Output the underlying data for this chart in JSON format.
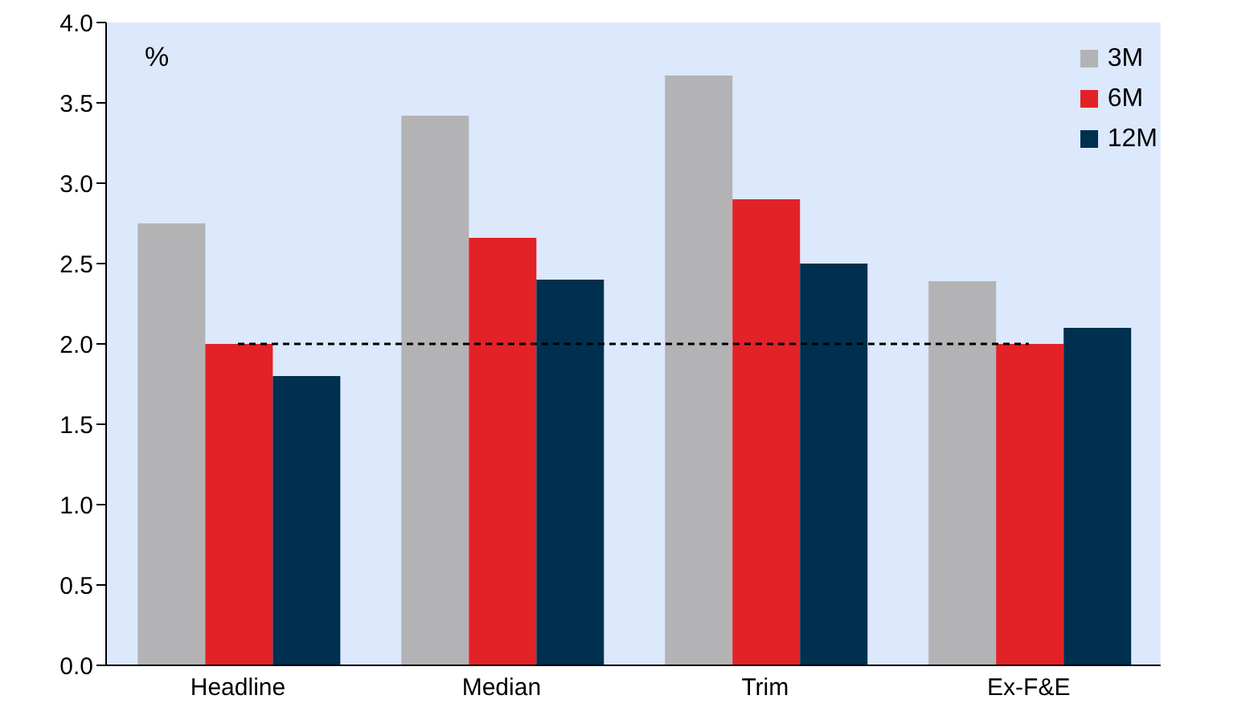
{
  "chart_data": {
    "type": "bar",
    "categories": [
      "Headline",
      "Median",
      "Trim",
      "Ex-F&E"
    ],
    "series": [
      {
        "name": "3M",
        "color": "#b3b3b5",
        "values": [
          2.75,
          3.42,
          3.67,
          2.39
        ]
      },
      {
        "name": "6M",
        "color": "#e32227",
        "values": [
          2.0,
          2.66,
          2.9,
          2.0
        ]
      },
      {
        "name": "12M",
        "color": "#00304f",
        "values": [
          1.8,
          2.4,
          2.5,
          2.1
        ]
      }
    ],
    "ylim": [
      0,
      4
    ],
    "yticks": [
      {
        "value": 0,
        "label": "0.0"
      },
      {
        "value": 0.5,
        "label": "0.5"
      },
      {
        "value": 1,
        "label": "1.0"
      },
      {
        "value": 1.5,
        "label": "1.5"
      },
      {
        "value": 2,
        "label": "2.0"
      },
      {
        "value": 2.5,
        "label": "2.5"
      },
      {
        "value": 3,
        "label": "3.0"
      },
      {
        "value": 3.5,
        "label": "3.5"
      },
      {
        "value": 4,
        "label": "4.0"
      }
    ],
    "annotations": [
      "%"
    ],
    "ref_lines": [
      {
        "axis": "y",
        "value": 2,
        "color": "#000000",
        "line_style": "dashed"
      }
    ],
    "legend": "top right",
    "grid": false
  }
}
